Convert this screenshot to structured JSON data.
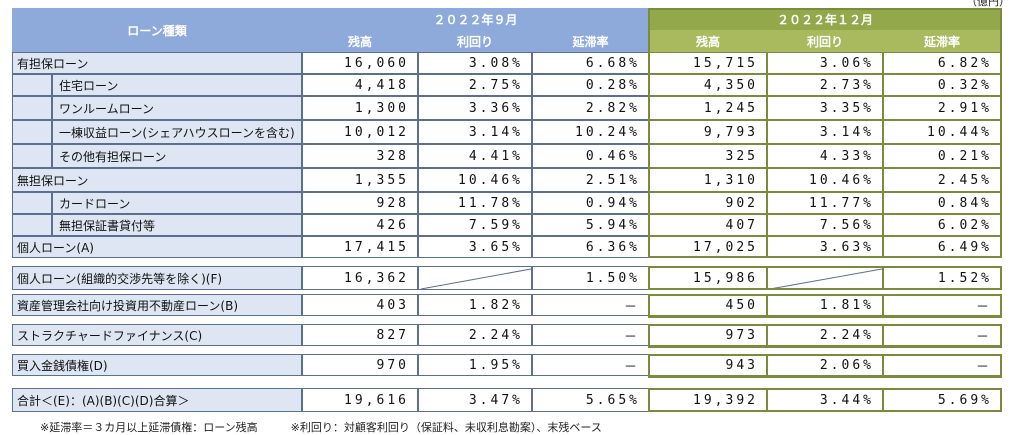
{
  "unit_label": "（億円）",
  "header": {
    "category": "ローン種類",
    "period1": "２０２２年９月",
    "period2": "２０２２年１２月",
    "cols": [
      "残高",
      "利回り",
      "延滞率"
    ]
  },
  "rows": [
    {
      "label": "有担保ローン",
      "indent": 0,
      "p1": [
        "16,060",
        "3.08%",
        "6.68%"
      ],
      "p2": [
        "15,715",
        "3.06%",
        "6.82%"
      ]
    },
    {
      "label": "住宅ローン",
      "indent": 1,
      "p1": [
        "4,418",
        "2.75%",
        "0.28%"
      ],
      "p2": [
        "4,350",
        "2.73%",
        "0.32%"
      ]
    },
    {
      "label": "ワンルームローン",
      "indent": 1,
      "p1": [
        "1,300",
        "3.36%",
        "2.82%"
      ],
      "p2": [
        "1,245",
        "3.35%",
        "2.91%"
      ]
    },
    {
      "label": "一棟収益ローン(シェアハウスローンを含む)",
      "indent": 1,
      "p1": [
        "10,012",
        "3.14%",
        "10.24%"
      ],
      "p2": [
        "9,793",
        "3.14%",
        "10.44%"
      ]
    },
    {
      "label": "その他有担保ローン",
      "indent": 1,
      "p1": [
        "328",
        "4.41%",
        "0.46%"
      ],
      "p2": [
        "325",
        "4.33%",
        "0.21%"
      ]
    },
    {
      "label": "無担保ローン",
      "indent": 0,
      "p1": [
        "1,355",
        "10.46%",
        "2.51%"
      ],
      "p2": [
        "1,310",
        "10.46%",
        "2.45%"
      ]
    },
    {
      "label": "カードローン",
      "indent": 1,
      "p1": [
        "928",
        "11.78%",
        "0.94%"
      ],
      "p2": [
        "902",
        "11.77%",
        "0.84%"
      ]
    },
    {
      "label": "無担保証書貸付等",
      "indent": 1,
      "p1": [
        "426",
        "7.59%",
        "5.94%"
      ],
      "p2": [
        "407",
        "7.56%",
        "6.02%"
      ]
    },
    {
      "label": "個人ローン(A)",
      "indent": 0,
      "p1": [
        "17,415",
        "3.65%",
        "6.36%"
      ],
      "p2": [
        "17,025",
        "3.63%",
        "6.49%"
      ]
    },
    {
      "label": "個人ローン(組織的交渉先等を除く)(F)",
      "indent": 0,
      "p1": [
        "16,362",
        "",
        "1.50%"
      ],
      "p2": [
        "15,986",
        "",
        "1.52%"
      ]
    },
    {
      "label": "資産管理会社向け投資用不動産ローン(B)",
      "indent": 0,
      "p1": [
        "403",
        "1.82%",
        "－"
      ],
      "p2": [
        "450",
        "1.81%",
        "－"
      ]
    },
    {
      "label": "ストラクチャードファイナンス(C)",
      "indent": 0,
      "p1": [
        "827",
        "2.24%",
        "－"
      ],
      "p2": [
        "973",
        "2.24%",
        "－"
      ]
    },
    {
      "label": "買入金銭債権(D)",
      "indent": 0,
      "p1": [
        "970",
        "1.95%",
        "－"
      ],
      "p2": [
        "943",
        "2.06%",
        "－"
      ]
    },
    {
      "label": "合計＜(E)：(A)(B)(C)(D)合算＞",
      "indent": 0,
      "p1": [
        "19,616",
        "3.47%",
        "5.65%"
      ],
      "p2": [
        "19,392",
        "3.44%",
        "5.69%"
      ]
    }
  ],
  "footnote": "※延滞率＝３カ月以上延滞債権：ローン残高　　　※利回り：対顧客利回り（保証料、未収利息勘案）、末残ベース"
}
